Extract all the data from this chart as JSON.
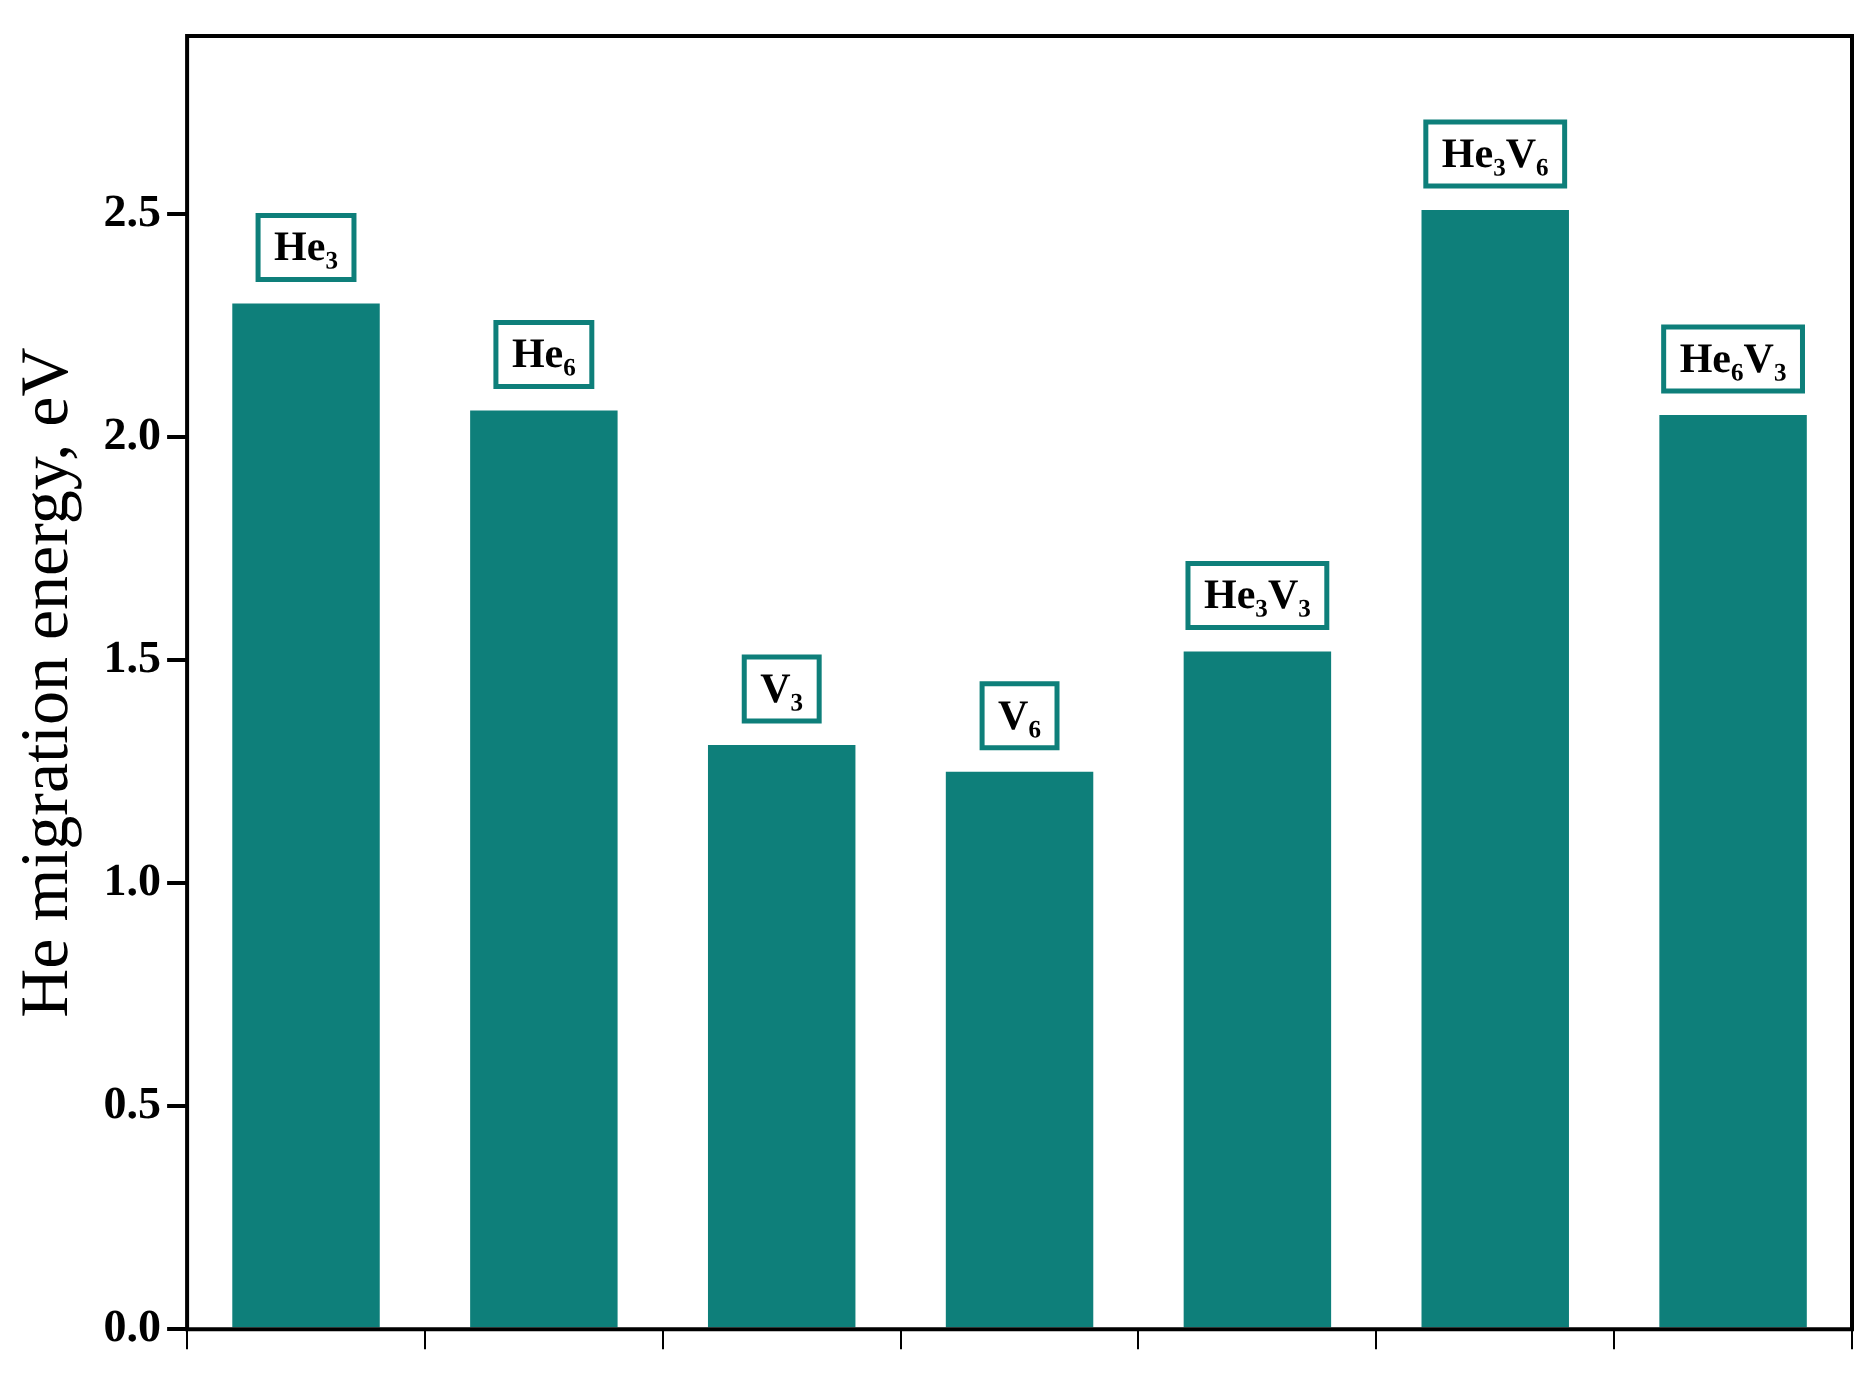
{
  "chart_data": {
    "type": "bar",
    "ylabel": "He migration energy, eV",
    "categories": [
      "He₃",
      "He₆",
      "V₃",
      "V₆",
      "He₃V₃",
      "He₃V₆",
      "He₆V₃"
    ],
    "values": [
      2.3,
      2.06,
      1.31,
      1.25,
      1.52,
      2.51,
      2.05
    ],
    "color": "#0e7f7a",
    "ylim": [
      0,
      2.9
    ],
    "yticks": [
      {
        "value": 0,
        "label": "0.0"
      },
      0.5,
      {
        "value": 1,
        "label": "1.0"
      },
      1.5,
      {
        "value": 2,
        "label": "2.0"
      },
      2.5
    ],
    "grid": false,
    "legend": false
  }
}
